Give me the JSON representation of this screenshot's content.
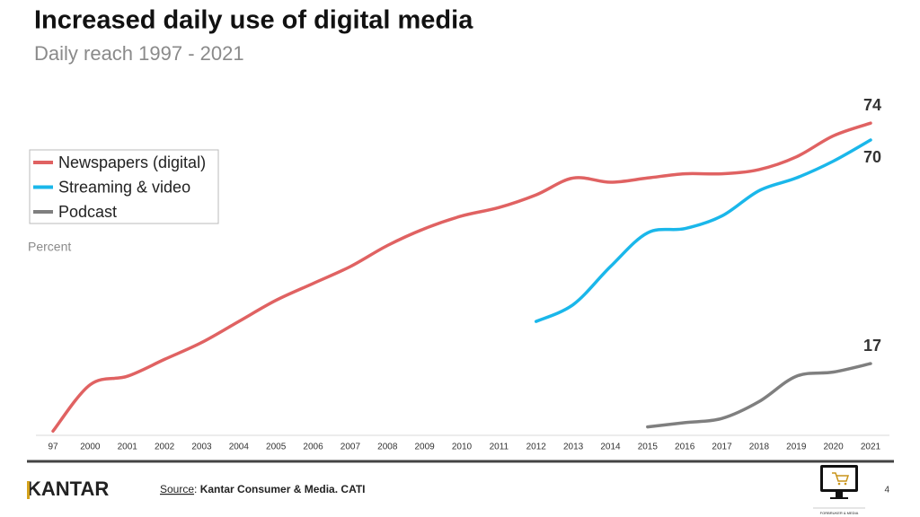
{
  "chart_data": {
    "type": "line",
    "title": "Increased daily use of digital media",
    "subtitle": "Daily reach 1997 - 2021",
    "y_label": "Percent",
    "categories": [
      "97",
      "2000",
      "2001",
      "2002",
      "2003",
      "2004",
      "2005",
      "2006",
      "2007",
      "2008",
      "2009",
      "2010",
      "2011",
      "2012",
      "2013",
      "2014",
      "2015",
      "2016",
      "2017",
      "2018",
      "2019",
      "2020",
      "2021"
    ],
    "series": [
      {
        "name": "Newspapers (digital)",
        "color": "#e06262",
        "values": [
          1,
          12,
          14,
          18,
          22,
          27,
          32,
          36,
          40,
          45,
          49,
          52,
          54,
          57,
          61,
          60,
          61,
          62,
          62,
          63,
          66,
          71,
          74
        ]
      },
      {
        "name": "Streaming & video",
        "color": "#1ab7ea",
        "values": [
          null,
          null,
          null,
          null,
          null,
          null,
          null,
          null,
          null,
          null,
          null,
          null,
          null,
          27,
          31,
          40,
          48,
          49,
          52,
          58,
          61,
          65,
          70
        ]
      },
      {
        "name": "Podcast",
        "color": "#7f7f7f",
        "values": [
          null,
          null,
          null,
          null,
          null,
          null,
          null,
          null,
          null,
          null,
          null,
          null,
          null,
          null,
          null,
          null,
          2,
          3,
          4,
          8,
          14,
          15,
          17
        ]
      }
    ],
    "ylim": [
      0,
      80
    ],
    "legend": "upper left"
  },
  "footer": {
    "logo": "KANTAR",
    "source_label": "Source",
    "source": "Kantar Consumer & Media. CATI",
    "page": "4",
    "badge": "FORBRUKER & MEDIA"
  }
}
